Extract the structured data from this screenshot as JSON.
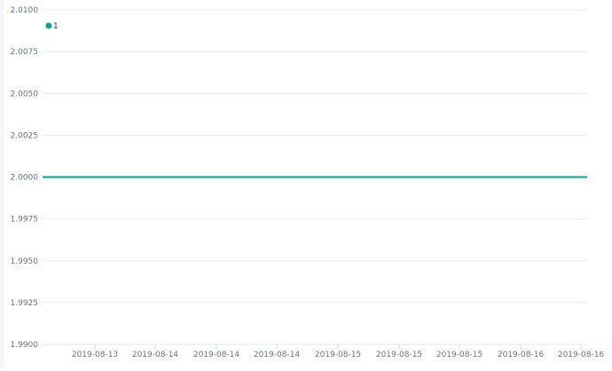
{
  "chart_data": {
    "type": "line",
    "title": "",
    "xlabel": "",
    "ylabel": "",
    "ylim": [
      1.99,
      2.01
    ],
    "y_ticks": [
      "1.9900",
      "1.9925",
      "1.9950",
      "1.9975",
      "2.0000",
      "2.0025",
      "2.0050",
      "2.0075",
      "2.0100"
    ],
    "x_ticks": [
      "2019-08-13",
      "2019-08-14",
      "2019-08-14",
      "2019-08-14",
      "2019-08-15",
      "2019-08-15",
      "2019-08-15",
      "2019-08-16",
      "2019-08-16"
    ],
    "grid": true,
    "legend_placement": "top-left",
    "series": [
      {
        "name": "1",
        "color": "#00a69b",
        "values": [
          2.0,
          2.0
        ]
      }
    ]
  }
}
